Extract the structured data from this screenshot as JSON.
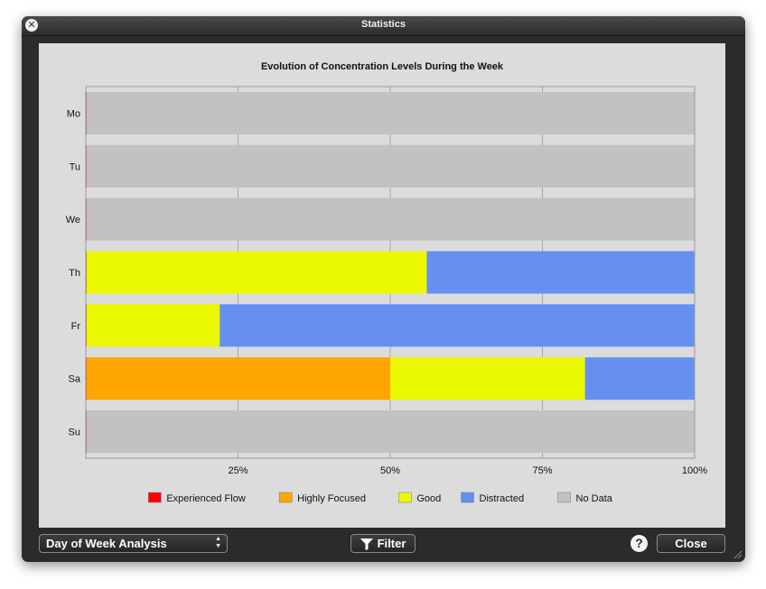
{
  "window": {
    "title": "Statistics"
  },
  "colors": {
    "experienced_flow": "#ff0000",
    "highly_focused": "#ffa500",
    "good": "#eaf900",
    "distracted": "#6590f0",
    "no_data": "#c2c2c2",
    "plot_background": "#dcdcdc",
    "gridline": "#a8a8a8"
  },
  "chart_data": {
    "type": "bar",
    "orientation": "horizontal",
    "stacked": true,
    "title": "Evolution of Concentration Levels During the Week",
    "categories": [
      "Mo",
      "Tu",
      "We",
      "Th",
      "Fr",
      "Sa",
      "Su"
    ],
    "xlim": [
      0,
      100
    ],
    "x_ticks": [
      25,
      50,
      75,
      100
    ],
    "x_tick_labels": [
      "25%",
      "50%",
      "75%",
      "100%"
    ],
    "grid": "vertical",
    "legend_position": "bottom",
    "series": [
      {
        "name": "Experienced Flow",
        "color": "#ff0000",
        "values": [
          0,
          0,
          0,
          0,
          0,
          0,
          0
        ]
      },
      {
        "name": "Highly Focused",
        "color": "#ffa500",
        "values": [
          0,
          0,
          0,
          0,
          0,
          50,
          0
        ]
      },
      {
        "name": "Good",
        "color": "#eaf900",
        "values": [
          0,
          0,
          0,
          56,
          22,
          32,
          0
        ]
      },
      {
        "name": "Distracted",
        "color": "#6590f0",
        "values": [
          0,
          0,
          0,
          44,
          78,
          18,
          0
        ]
      },
      {
        "name": "No Data",
        "color": "#c2c2c2",
        "values": [
          100,
          100,
          100,
          0,
          0,
          0,
          100
        ]
      }
    ]
  },
  "controls": {
    "analysis_select": "Day of Week Analysis",
    "filter_label": "Filter",
    "help_label": "?",
    "close_label": "Close"
  }
}
